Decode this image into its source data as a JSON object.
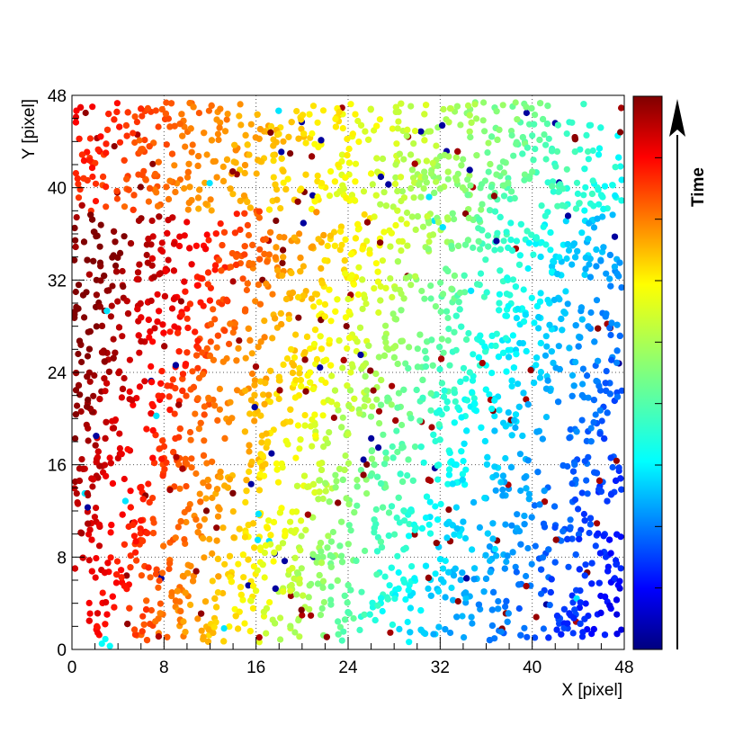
{
  "chart_data": {
    "type": "scatter",
    "title": "",
    "xlabel": "X [pixel]",
    "ylabel": "Y [pixel]",
    "xlim": [
      0,
      48
    ],
    "ylim": [
      0,
      48
    ],
    "x_ticks": [
      "0",
      "8",
      "16",
      "24",
      "32",
      "40",
      "48"
    ],
    "y_ticks": [
      "0",
      "8",
      "16",
      "24",
      "32",
      "40",
      "48"
    ],
    "grid": true,
    "colorbar": {
      "label": "Time",
      "colormap": "jet",
      "direction": "increasing-up",
      "colors": [
        "#00007f",
        "#0000ff",
        "#007fff",
        "#00ffff",
        "#7fff7f",
        "#ffff00",
        "#ff7f00",
        "#ff0000",
        "#7f0000"
      ]
    },
    "description_points": "Dense event hits filling the 48x48 pixel sensor; colour (time) decreases from upper-left/left (late, red) across the top (green) to lower-right (early, blue), forming curved wavefront arcs centred near (30,0)."
  }
}
